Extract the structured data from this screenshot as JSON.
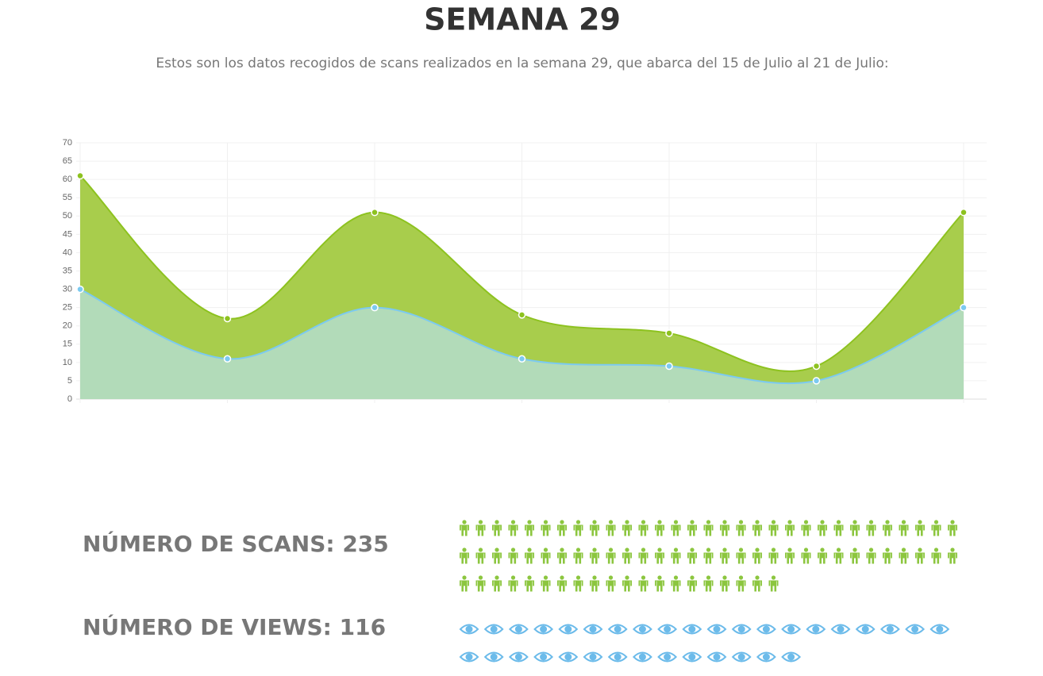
{
  "title": "SEMANA 29",
  "subtitle": "Estos son los datos recogidos de scans realizados en la semana 29, que abarca del 15 de Julio al 21 de Julio:",
  "chart_data": {
    "type": "area",
    "categories": [
      null,
      null,
      null,
      null,
      null,
      null,
      null
    ],
    "series": [
      {
        "color": "#8dc21f",
        "fill": "#a8cd4c",
        "values": [
          61,
          22,
          51,
          23,
          18,
          9,
          51
        ]
      },
      {
        "color": "#7ccaf0",
        "fill": "#b2dbb9",
        "values": [
          30,
          11,
          25,
          11,
          9,
          5,
          25
        ]
      }
    ],
    "ylim": [
      0,
      70
    ],
    "yticks": [
      0,
      5,
      10,
      15,
      20,
      25,
      30,
      35,
      40,
      45,
      50,
      55,
      60,
      65,
      70
    ],
    "grid": true
  },
  "scans": {
    "label": "NÚMERO DE SCANS:",
    "value": 235,
    "icons": 82,
    "color": "#8cc63f"
  },
  "views": {
    "label": "NÚMERO DE VIEWS:",
    "value": 116,
    "icons": 34,
    "color": "#6cbbea"
  }
}
